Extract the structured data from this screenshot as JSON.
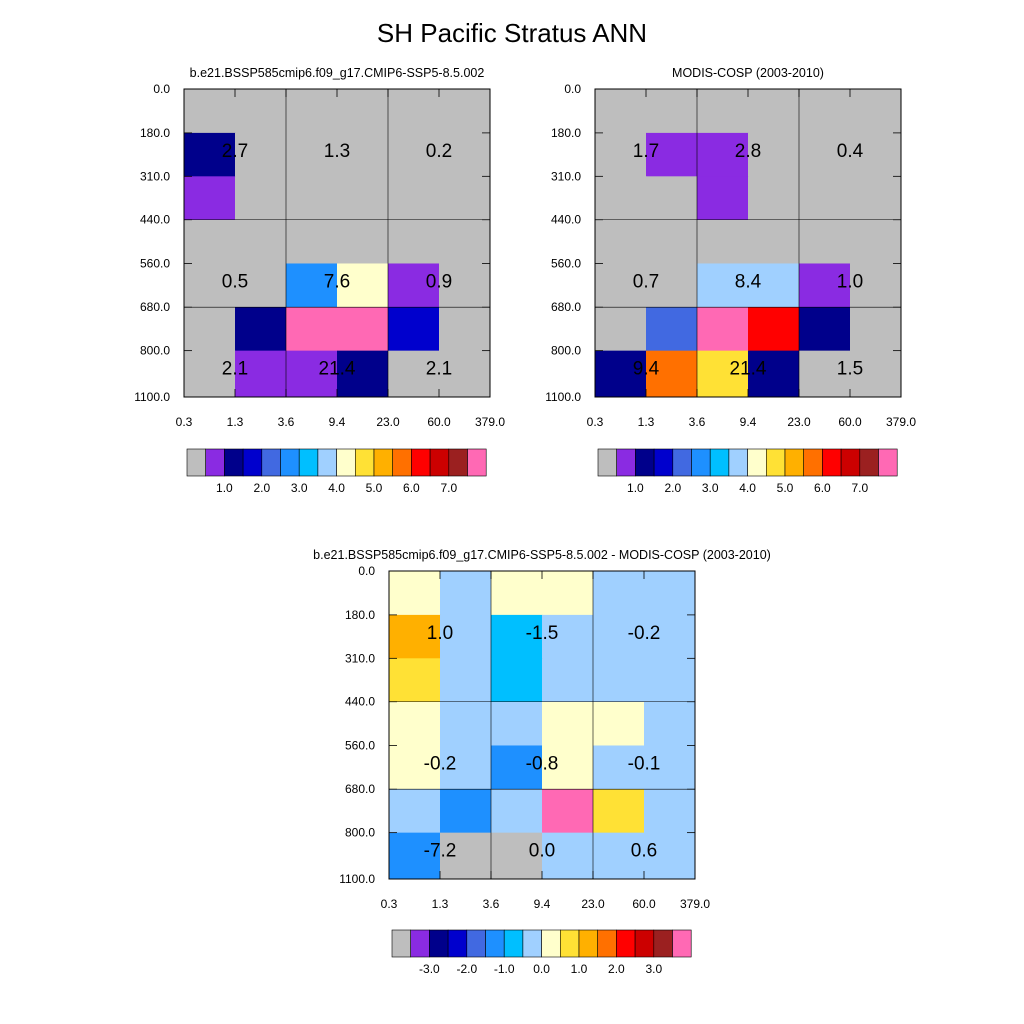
{
  "title": "SH Pacific Stratus ANN",
  "colors": {
    "background_cell": "#BEBEBE",
    "grid_line": "#000000",
    "abs_scale": [
      "#BEBEBE",
      "#8A2BE2",
      "#00008B",
      "#0000CD",
      "#4169E1",
      "#1E90FF",
      "#00BFFF",
      "#A0D0FF",
      "#FFFFCC",
      "#FFE135",
      "#FFB000",
      "#FF7000",
      "#FF0000",
      "#CC0000",
      "#9B2020",
      "#FF69B4"
    ],
    "diff_scale": [
      "#BEBEBE",
      "#8A2BE2",
      "#00008B",
      "#0000CD",
      "#4169E1",
      "#1E90FF",
      "#00BFFF",
      "#A0D0FF",
      "#FFFFCC",
      "#FFE135",
      "#FFB000",
      "#FF7000",
      "#FF0000",
      "#CC0000",
      "#9B2020",
      "#FF69B4"
    ]
  },
  "chart_data": [
    {
      "type": "heatmap",
      "title": "b.e21.BSSP585cmip6.f09_g17.CMIP6-SSP5-8.5.002",
      "x_ticks": [
        "0.3",
        "1.3",
        "3.6",
        "9.4",
        "23.0",
        "60.0",
        "379.0"
      ],
      "y_ticks": [
        "0.0",
        "180.0",
        "310.0",
        "440.0",
        "560.0",
        "680.0",
        "800.0",
        "1100.0"
      ],
      "cells": [
        [
          0,
          0,
          0,
          0,
          0,
          0
        ],
        [
          2,
          0,
          0,
          0,
          0,
          0
        ],
        [
          1,
          0,
          0,
          0,
          0,
          0
        ],
        [
          0,
          0,
          0,
          0,
          0,
          0
        ],
        [
          0,
          0,
          5,
          8,
          1,
          0
        ],
        [
          0,
          2,
          15,
          15,
          3,
          0
        ],
        [
          0,
          1,
          1,
          2,
          0,
          0
        ]
      ],
      "box_labels": [
        [
          "2.7",
          "1.3",
          "0.2"
        ],
        [
          "0.5",
          "7.6",
          "0.9"
        ],
        [
          "2.1",
          "21.4",
          "2.1"
        ]
      ],
      "colorbar_labels": [
        "1.0",
        "2.0",
        "3.0",
        "4.0",
        "5.0",
        "6.0",
        "7.0"
      ]
    },
    {
      "type": "heatmap",
      "title": "MODIS-COSP (2003-2010)",
      "x_ticks": [
        "0.3",
        "1.3",
        "3.6",
        "9.4",
        "23.0",
        "60.0",
        "379.0"
      ],
      "y_ticks": [
        "0.0",
        "180.0",
        "310.0",
        "440.0",
        "560.0",
        "680.0",
        "800.0",
        "1100.0"
      ],
      "cells": [
        [
          0,
          0,
          0,
          0,
          0,
          0
        ],
        [
          0,
          1,
          1,
          0,
          0,
          0
        ],
        [
          0,
          0,
          1,
          0,
          0,
          0
        ],
        [
          0,
          0,
          0,
          0,
          0,
          0
        ],
        [
          0,
          0,
          7,
          7,
          1,
          0
        ],
        [
          0,
          4,
          15,
          12,
          2,
          0
        ],
        [
          2,
          11,
          9,
          2,
          0,
          0
        ]
      ],
      "box_labels": [
        [
          "1.7",
          "2.8",
          "0.4"
        ],
        [
          "0.7",
          "8.4",
          "1.0"
        ],
        [
          "9.4",
          "21.4",
          "1.5"
        ]
      ],
      "colorbar_labels": [
        "1.0",
        "2.0",
        "3.0",
        "4.0",
        "5.0",
        "6.0",
        "7.0"
      ]
    },
    {
      "type": "heatmap",
      "title": "b.e21.BSSP585cmip6.f09_g17.CMIP6-SSP5-8.5.002 - MODIS-COSP (2003-2010)",
      "x_ticks": [
        "0.3",
        "1.3",
        "3.6",
        "9.4",
        "23.0",
        "60.0",
        "379.0"
      ],
      "y_ticks": [
        "0.0",
        "180.0",
        "310.0",
        "440.0",
        "560.0",
        "680.0",
        "800.0",
        "1100.0"
      ],
      "cells": [
        [
          8,
          7,
          8,
          8,
          7,
          7
        ],
        [
          10,
          7,
          6,
          7,
          7,
          7
        ],
        [
          9,
          7,
          6,
          7,
          7,
          7
        ],
        [
          8,
          7,
          7,
          8,
          8,
          7
        ],
        [
          8,
          7,
          5,
          8,
          7,
          7
        ],
        [
          7,
          5,
          7,
          15,
          9,
          7
        ],
        [
          5,
          0,
          0,
          7,
          7,
          7
        ]
      ],
      "box_labels": [
        [
          "1.0",
          "-1.5",
          "-0.2"
        ],
        [
          "-0.2",
          "-0.8",
          "-0.1"
        ],
        [
          "-7.2",
          "0.0",
          "0.6"
        ]
      ],
      "colorbar_labels": [
        "-3.0",
        "-2.0",
        "-1.0",
        "0.0",
        "1.0",
        "2.0",
        "3.0"
      ]
    }
  ]
}
